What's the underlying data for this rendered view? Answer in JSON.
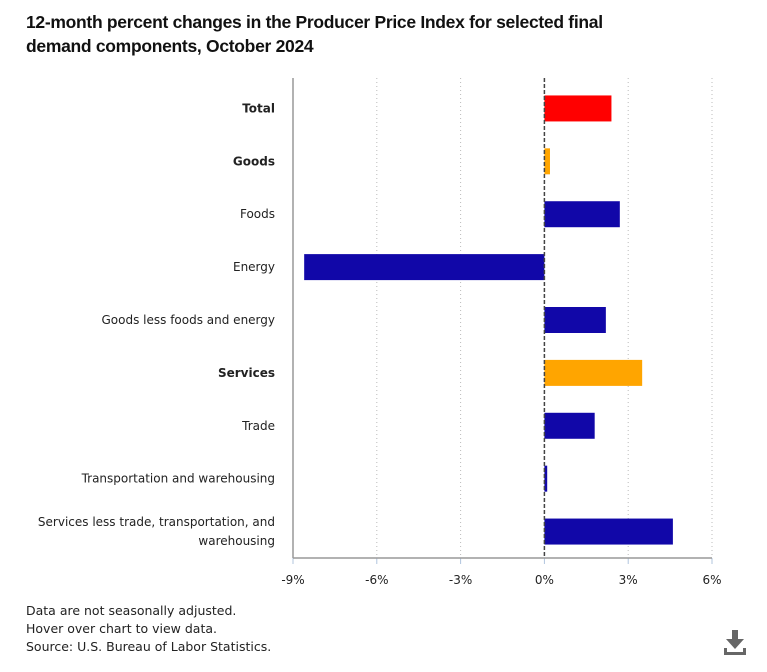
{
  "chart_data": {
    "type": "bar",
    "orientation": "horizontal",
    "title": "12-month percent changes in the Producer Price Index for selected final demand components, October 2024",
    "xlabel": "",
    "ylabel": "",
    "xlim": [
      -9,
      6
    ],
    "xticks": [
      -9,
      -6,
      -3,
      0,
      3,
      6
    ],
    "xtick_labels": [
      "-9%",
      "-6%",
      "-3%",
      "0%",
      "3%",
      "6%"
    ],
    "grid": "vertical-dotted",
    "categories": [
      {
        "label": "Total",
        "bold": true,
        "value": 2.4,
        "color": "#ff0000"
      },
      {
        "label": "Goods",
        "bold": true,
        "value": 0.2,
        "color": "#ffa500"
      },
      {
        "label": "Foods",
        "bold": false,
        "value": 2.7,
        "color": "#1107a8"
      },
      {
        "label": "Energy",
        "bold": false,
        "value": -8.6,
        "color": "#1107a8"
      },
      {
        "label": "Goods less foods and energy",
        "bold": false,
        "value": 2.2,
        "color": "#1107a8"
      },
      {
        "label": "Services",
        "bold": true,
        "value": 3.5,
        "color": "#ffa500"
      },
      {
        "label": "Trade",
        "bold": false,
        "value": 1.8,
        "color": "#1107a8"
      },
      {
        "label": "Transportation and warehousing",
        "bold": false,
        "value": 0.1,
        "color": "#1107a8"
      },
      {
        "label": [
          "Services less trade, transportation, and",
          "warehousing"
        ],
        "bold": false,
        "value": 4.6,
        "color": "#1107a8"
      }
    ]
  },
  "notes": {
    "line1": "Data are not seasonally adjusted.",
    "line2": "Hover over chart to view data.",
    "line3": "Source: U.S. Bureau of Labor Statistics."
  },
  "download_icon": "download-icon"
}
